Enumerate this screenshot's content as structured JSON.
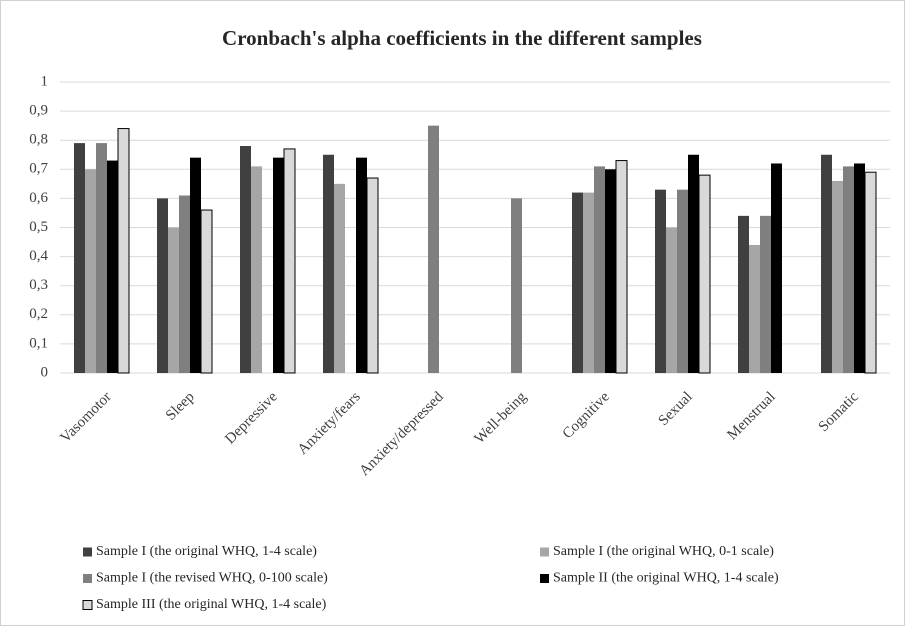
{
  "chart_data": {
    "type": "bar",
    "title": "Cronbach's alpha coefficients in the different samples",
    "categories": [
      "Vasomotor",
      "Sleep",
      "Depressive",
      "Anxiety/fears",
      "Anxiety/depressed",
      "Well-being",
      "Cognitive",
      "Sexual",
      "Menstrual",
      "Somatic"
    ],
    "series": [
      {
        "name": "Sample I (the original WHQ, 1-4 scale)",
        "color": "#404040",
        "values": [
          0.79,
          0.6,
          0.78,
          0.75,
          null,
          null,
          0.62,
          0.63,
          0.54,
          0.75
        ]
      },
      {
        "name": "Sample I (the original WHQ, 0-1 scale)",
        "color": "#a6a6a6",
        "values": [
          0.7,
          0.5,
          0.71,
          0.65,
          null,
          null,
          0.62,
          0.5,
          0.44,
          0.66
        ]
      },
      {
        "name": "Sample I (the revised WHQ, 0-100 scale)",
        "color": "#7f7f7f",
        "values": [
          0.79,
          0.61,
          null,
          null,
          0.85,
          0.6,
          0.71,
          0.63,
          0.54,
          0.71
        ]
      },
      {
        "name": "Sample II (the original WHQ, 1-4 scale)",
        "color": "#000000",
        "values": [
          0.73,
          0.74,
          0.74,
          0.74,
          null,
          null,
          0.7,
          0.75,
          0.72,
          0.72
        ]
      },
      {
        "name": "Sample III (the original WHQ, 1-4 scale)",
        "color": "#d9d9d9",
        "values": [
          0.84,
          0.56,
          0.77,
          0.67,
          null,
          null,
          0.73,
          0.68,
          null,
          0.69
        ]
      }
    ],
    "ylim": [
      0,
      1
    ],
    "yticks": [
      0,
      {
        "value": 0.1,
        "label": "0,1"
      },
      {
        "value": 0.2,
        "label": "0,2"
      },
      {
        "value": 0.3,
        "label": "0,3"
      },
      {
        "value": 0.4,
        "label": "0,4"
      },
      {
        "value": 0.5,
        "label": "0,5"
      },
      {
        "value": 0.6,
        "label": "0,6"
      },
      {
        "value": 0.7,
        "label": "0,7"
      },
      {
        "value": 0.8,
        "label": "0,8"
      },
      {
        "value": 0.9,
        "label": "0,9"
      },
      1
    ],
    "grid": true,
    "legend": "bottom"
  }
}
